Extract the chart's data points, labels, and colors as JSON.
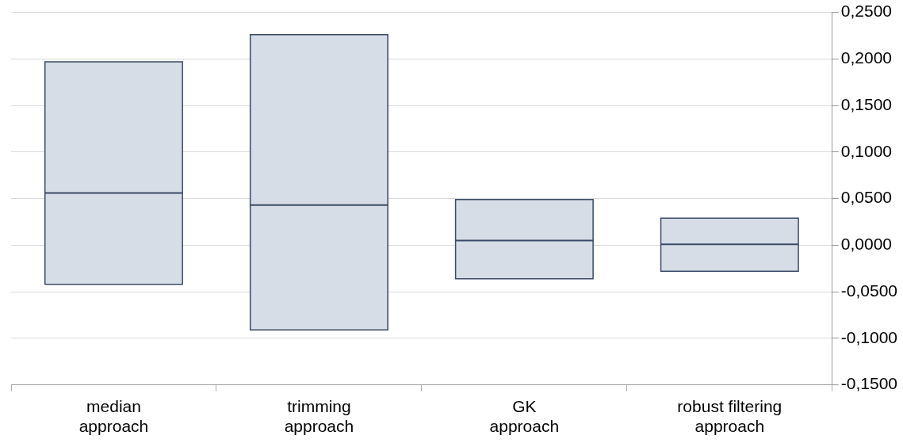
{
  "chart_data": {
    "type": "box",
    "categories": [
      "median approach",
      "trimming approach",
      "GK approach",
      "robust filtering approach"
    ],
    "boxes": [
      {
        "low": -0.042,
        "q1": -0.042,
        "median": 0.056,
        "q3": 0.197,
        "high": 0.197
      },
      {
        "low": -0.091,
        "q1": -0.091,
        "median": 0.043,
        "q3": 0.226,
        "high": 0.226
      },
      {
        "low": -0.036,
        "q1": -0.036,
        "median": 0.005,
        "q3": 0.049,
        "high": 0.049
      },
      {
        "low": -0.028,
        "q1": -0.028,
        "median": 0.001,
        "q3": 0.029,
        "high": 0.029
      }
    ],
    "color": "#d6dde6",
    "ylim": [
      -0.15,
      0.25
    ],
    "yticks": [
      {
        "value": -0.15,
        "label": "-0,1500"
      },
      {
        "value": -0.1,
        "label": "-0,1000"
      },
      {
        "value": -0.05,
        "label": "-0,0500"
      },
      {
        "value": 0,
        "label": "0,0000"
      },
      {
        "value": 0.05,
        "label": "0,0500"
      },
      {
        "value": 0.1,
        "label": "0,1000"
      },
      {
        "value": 0.15,
        "label": "0,1500"
      },
      {
        "value": 0.2,
        "label": "0,2000"
      },
      {
        "value": 0.25,
        "label": "0,2500"
      }
    ],
    "grid": "y",
    "legend": false
  }
}
